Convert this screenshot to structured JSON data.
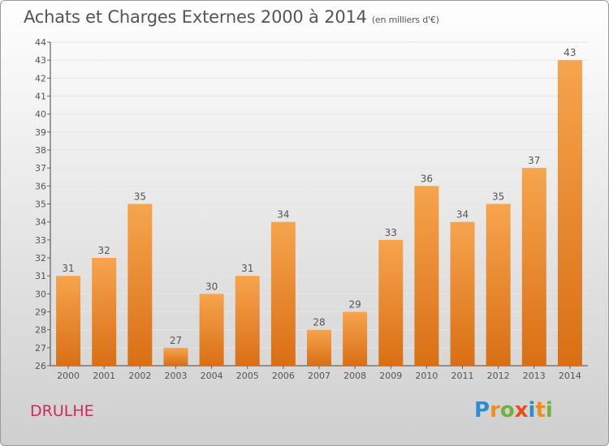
{
  "title": "Achats et Charges Externes 2000 à 2014",
  "unit": "(en milliers d'€)",
  "place": "DRULHE",
  "logo": {
    "letters": [
      "P",
      "r",
      "o",
      "x",
      "i",
      "t",
      "i"
    ],
    "colors": [
      "#2a8fd0",
      "#f28c1e",
      "#6db33f",
      "#e84e1b",
      "#2a8fd0",
      "#f28c1e",
      "#6db33f"
    ]
  },
  "colors": {
    "bar_light": "#f6a44e",
    "bar_dark": "#d96f14",
    "text": "#555555",
    "grid": "#e6e6e6"
  },
  "chart_data": {
    "type": "bar",
    "categories": [
      "2000",
      "2001",
      "2002",
      "2003",
      "2004",
      "2005",
      "2006",
      "2007",
      "2008",
      "2009",
      "2010",
      "2011",
      "2012",
      "2013",
      "2014"
    ],
    "values": [
      31,
      32,
      35,
      27,
      30,
      31,
      34,
      28,
      29,
      33,
      36,
      34,
      35,
      37,
      43
    ],
    "ylim": [
      26,
      44
    ],
    "yticks": [
      26,
      27,
      28,
      29,
      30,
      31,
      32,
      33,
      34,
      35,
      36,
      37,
      38,
      39,
      40,
      41,
      42,
      43,
      44
    ],
    "data_labels": true,
    "grid": true
  }
}
